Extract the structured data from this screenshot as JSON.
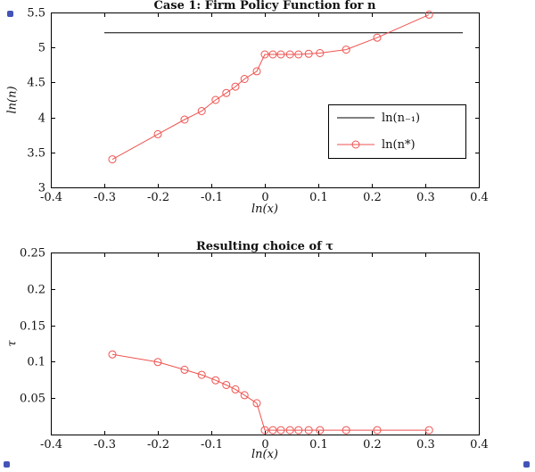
{
  "figure": {
    "background": "#ffffff",
    "text_color": "#111111",
    "accent_red": "#ee5350"
  },
  "chart_data": [
    {
      "type": "line",
      "title": "Case 1: Firm Policy Function for n",
      "xlabel": "ln(x)",
      "ylabel": "ln(n)",
      "xlim": [
        -0.4,
        0.4
      ],
      "ylim": [
        3,
        5.5
      ],
      "xticks": [
        -0.4,
        -0.3,
        -0.2,
        -0.1,
        0,
        0.1,
        0.2,
        0.3,
        0.4
      ],
      "xtick_labels": [
        "-0.4",
        "-0.3",
        "-0.2",
        "-0.1",
        "0",
        "0.1",
        "0.2",
        "0.3",
        "0.4"
      ],
      "yticks": [
        3,
        3.5,
        4,
        4.5,
        5,
        5.5
      ],
      "ytick_labels": [
        "3",
        "3.5",
        "4",
        "4.5",
        "5",
        "5.5"
      ],
      "grid": false,
      "legend": {
        "show": true,
        "position": "southeast"
      },
      "series": [
        {
          "name": "ln(n₋₁)",
          "color": "#000000",
          "marker": "none",
          "x": [
            -0.3,
            0.37
          ],
          "y": [
            5.21,
            5.21
          ]
        },
        {
          "name": "ln(n*)",
          "color": "#ee5350",
          "marker": "circle",
          "x": [
            -0.285,
            -0.2,
            -0.15,
            -0.118,
            -0.092,
            -0.072,
            -0.055,
            -0.038,
            -0.015,
            0.0,
            0.015,
            0.03,
            0.047,
            0.063,
            0.082,
            0.103,
            0.152,
            0.21,
            0.307
          ],
          "y": [
            3.4,
            3.76,
            3.97,
            4.09,
            4.25,
            4.35,
            4.44,
            4.55,
            4.66,
            4.9,
            4.9,
            4.9,
            4.9,
            4.9,
            4.91,
            4.92,
            4.97,
            5.14,
            5.47
          ]
        }
      ]
    },
    {
      "type": "line",
      "title": "Resulting choice of τ",
      "xlabel": "ln(x)",
      "ylabel": "τ",
      "xlim": [
        -0.4,
        0.4
      ],
      "ylim": [
        0,
        0.25
      ],
      "xticks": [
        -0.4,
        -0.3,
        -0.2,
        -0.1,
        0,
        0.1,
        0.2,
        0.3,
        0.4
      ],
      "xtick_labels": [
        "-0.4",
        "-0.3",
        "-0.2",
        "-0.1",
        "0",
        "0.1",
        "0.2",
        "0.3",
        "0.4"
      ],
      "yticks": [
        0.05,
        0.1,
        0.15,
        0.2,
        0.25
      ],
      "ytick_labels": [
        "0.05",
        "0.1",
        "0.15",
        "0.2",
        "0.25"
      ],
      "grid": false,
      "legend": {
        "show": false
      },
      "series": [
        {
          "name": "tau",
          "color": "#ee5350",
          "marker": "circle",
          "x": [
            -0.285,
            -0.2,
            -0.15,
            -0.118,
            -0.092,
            -0.072,
            -0.055,
            -0.038,
            -0.015,
            0.0,
            0.015,
            0.03,
            0.047,
            0.063,
            0.082,
            0.103,
            0.152,
            0.21,
            0.307
          ],
          "y": [
            0.11,
            0.0995,
            0.089,
            0.082,
            0.0745,
            0.068,
            0.062,
            0.054,
            0.043,
            0.006,
            0.006,
            0.006,
            0.006,
            0.006,
            0.006,
            0.006,
            0.006,
            0.006,
            0.006
          ]
        }
      ]
    }
  ]
}
